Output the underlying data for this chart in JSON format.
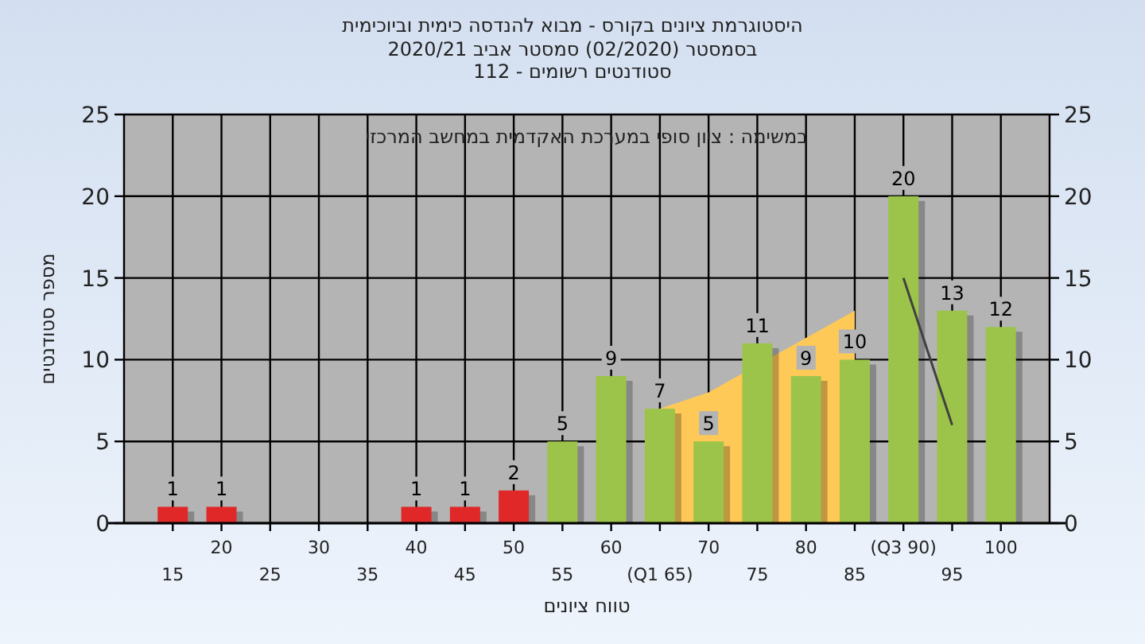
{
  "chart_data": {
    "type": "bar",
    "title": "היסטוגרמת ציונים בקורס - מבוא להנדסה כימית וביוכימית",
    "subtitle": "בסמסטר  (02/2020)  סמסטר אביב 2020/21\nסטודנטים רשומים - 112",
    "xlabel": "טווח ציונים",
    "ylabel": "מספר סטודנטים",
    "annotations": [
      "במשימה : ציון סופי במערכת האקדמית במחשב המרכזי"
    ],
    "categories": [
      "15",
      "20",
      "25",
      "30",
      "35",
      "40",
      "45",
      "50",
      "55",
      "60",
      "(Q1 65)",
      "70",
      "75",
      "80",
      "85",
      "(Q3 90)",
      "95",
      "100"
    ],
    "series": [
      {
        "type": "area",
        "color": "#ffc957",
        "values": [
          null,
          null,
          null,
          null,
          null,
          null,
          null,
          null,
          null,
          null,
          7,
          8,
          null,
          null,
          13,
          null,
          null,
          null
        ]
      },
      {
        "colors": [
          "#e02828",
          "#e02828",
          "#e02828",
          "#e02828",
          "#e02828",
          "#e02828",
          "#e02828",
          "#e02828",
          "#9cc44a",
          "#9cc44a",
          "#9cc44a",
          "#9cc44a",
          "#9cc44a",
          "#9cc44a",
          "#9cc44a",
          "#9cc44a",
          "#9cc44a",
          "#9cc44a"
        ],
        "values": [
          1,
          1,
          0,
          0,
          0,
          1,
          1,
          2,
          5,
          9,
          7,
          5,
          11,
          9,
          10,
          20,
          13,
          12
        ],
        "value_labels": [
          "1",
          "1",
          null,
          null,
          null,
          "1",
          "1",
          "2",
          "5",
          "9",
          "7",
          "5",
          "11",
          "9",
          "10",
          "20",
          "13",
          "12"
        ]
      },
      {
        "type": "line",
        "color": "#404040",
        "values": [
          null,
          null,
          null,
          null,
          null,
          null,
          null,
          null,
          null,
          null,
          null,
          null,
          null,
          null,
          null,
          15,
          6,
          null
        ]
      }
    ],
    "ylim": [
      0,
      25
    ],
    "yticks": [
      0,
      5,
      10,
      15,
      20,
      25
    ],
    "y2lim": [
      0,
      25
    ],
    "y2ticks": [
      0,
      5,
      10,
      15,
      20,
      25
    ],
    "grid": true
  }
}
